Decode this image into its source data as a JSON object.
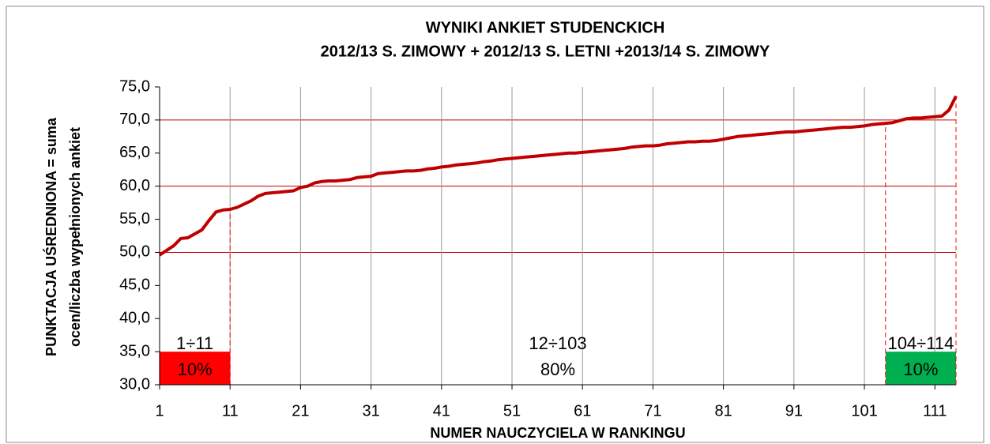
{
  "chart_data": {
    "type": "line",
    "title": [
      "WYNIKI  ANKIET  STUDENCKICH",
      "2012/13 S. ZIMOWY + 2012/13 S. LETNI +2013/14 S. ZIMOWY"
    ],
    "y_label": [
      "PUNKTACJA UŚREDNIONA = suma",
      "ocen/liczba wypełnionych ankiet"
    ],
    "x_label": "NUMER NAUCZYCIELA W RANKINGU",
    "x": [
      1,
      2,
      3,
      4,
      5,
      6,
      7,
      8,
      9,
      10,
      11,
      12,
      13,
      14,
      15,
      16,
      17,
      18,
      19,
      20,
      21,
      22,
      23,
      24,
      25,
      26,
      27,
      28,
      29,
      30,
      31,
      32,
      33,
      34,
      35,
      36,
      37,
      38,
      39,
      40,
      41,
      42,
      43,
      44,
      45,
      46,
      47,
      48,
      49,
      50,
      51,
      52,
      53,
      54,
      55,
      56,
      57,
      58,
      59,
      60,
      61,
      62,
      63,
      64,
      65,
      66,
      67,
      68,
      69,
      70,
      71,
      72,
      73,
      74,
      75,
      76,
      77,
      78,
      79,
      80,
      81,
      82,
      83,
      84,
      85,
      86,
      87,
      88,
      89,
      90,
      91,
      92,
      93,
      94,
      95,
      96,
      97,
      98,
      99,
      100,
      101,
      102,
      103,
      104,
      105,
      106,
      107,
      108,
      109,
      110,
      111,
      112,
      113,
      114
    ],
    "series": [
      {
        "color": "#c00000",
        "values": [
          49.6,
          50.3,
          51.0,
          52.1,
          52.2,
          52.8,
          53.4,
          54.8,
          56.1,
          56.4,
          56.5,
          56.8,
          57.3,
          57.8,
          58.5,
          58.9,
          59.0,
          59.1,
          59.2,
          59.3,
          59.8,
          60.0,
          60.5,
          60.7,
          60.8,
          60.8,
          60.9,
          61.0,
          61.3,
          61.4,
          61.5,
          61.9,
          62.0,
          62.1,
          62.2,
          62.3,
          62.3,
          62.4,
          62.6,
          62.7,
          62.9,
          63.0,
          63.2,
          63.3,
          63.4,
          63.5,
          63.7,
          63.8,
          64.0,
          64.1,
          64.2,
          64.3,
          64.4,
          64.5,
          64.6,
          64.7,
          64.8,
          64.9,
          65.0,
          65.0,
          65.1,
          65.2,
          65.3,
          65.4,
          65.5,
          65.6,
          65.7,
          65.9,
          66.0,
          66.1,
          66.1,
          66.2,
          66.4,
          66.5,
          66.6,
          66.7,
          66.7,
          66.8,
          66.8,
          66.9,
          67.1,
          67.3,
          67.5,
          67.6,
          67.7,
          67.8,
          67.9,
          68.0,
          68.1,
          68.2,
          68.2,
          68.3,
          68.4,
          68.5,
          68.6,
          68.7,
          68.8,
          68.9,
          68.9,
          69.0,
          69.1,
          69.3,
          69.4,
          69.5,
          69.6,
          69.9,
          70.2,
          70.3,
          70.3,
          70.4,
          70.5,
          70.6,
          71.5,
          73.6
        ]
      }
    ],
    "xlim": [
      1,
      114
    ],
    "xticks": [
      1,
      11,
      21,
      31,
      41,
      51,
      61,
      71,
      81,
      91,
      101,
      111
    ],
    "ylim": [
      30,
      75
    ],
    "yticks": [
      {
        "value": 30,
        "label": "30,0"
      },
      {
        "value": 35,
        "label": "35,0"
      },
      {
        "value": 40,
        "label": "40,0"
      },
      {
        "value": 45,
        "label": "45,0"
      },
      {
        "value": 50,
        "label": "50,0"
      },
      {
        "value": 55,
        "label": "55,0"
      },
      {
        "value": 60,
        "label": "60,0"
      },
      {
        "value": 65,
        "label": "65,0"
      },
      {
        "value": 70,
        "label": "70,0"
      },
      {
        "value": 75,
        "label": "75,0"
      }
    ],
    "hgrid": [
      50,
      60,
      70
    ],
    "hgrid_color": "#c00000",
    "vgrid": true,
    "regions": [
      {
        "label": "1÷11",
        "percent_label": "10%",
        "x": [
          1,
          11
        ],
        "band": [
          30,
          35
        ],
        "color": "#ff0000"
      },
      {
        "label": "12÷103",
        "percent_label": "80%",
        "x": [
          11,
          104
        ]
      },
      {
        "label": "104÷114",
        "percent_label": "10%",
        "x": [
          104,
          114
        ],
        "band": [
          30,
          35
        ],
        "color": "#00b050"
      }
    ]
  }
}
